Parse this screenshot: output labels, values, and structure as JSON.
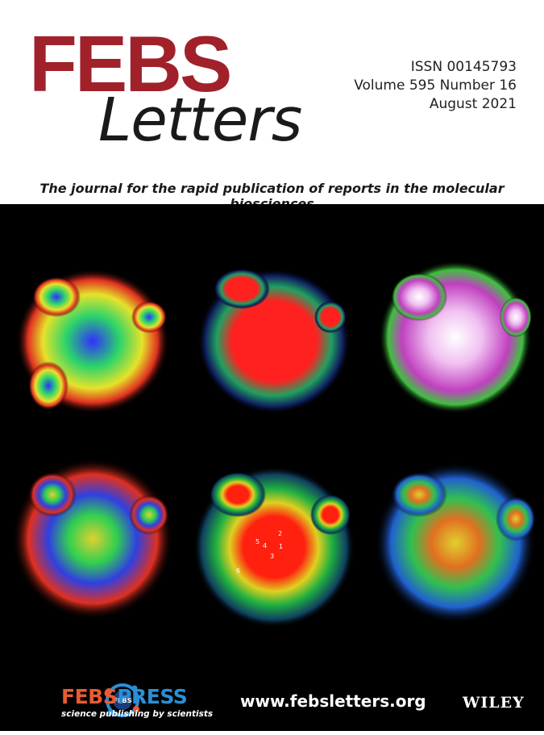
{
  "masthead": {
    "title_main": "FEBS",
    "title_sub": "Letters",
    "issn": "ISSN 00145793",
    "volume": "Volume 595 Number 16",
    "date": "August 2021",
    "tagline": "The journal for the rapid publication of reports in the molecular biosciences"
  },
  "cover_image": {
    "labels": [
      "1",
      "2",
      "3",
      "4",
      "5",
      "6"
    ]
  },
  "footer": {
    "logo_badge": "FEBS",
    "press_name_a": "FEBS",
    "press_name_b": "PRESS",
    "press_tagline": "science publishing by scientists",
    "url": "www.febsletters.org",
    "publisher": "WILEY"
  },
  "colors": {
    "brand_red": "#a1212b",
    "press_orange": "#e85b34",
    "press_blue": "#2a8fd6"
  }
}
